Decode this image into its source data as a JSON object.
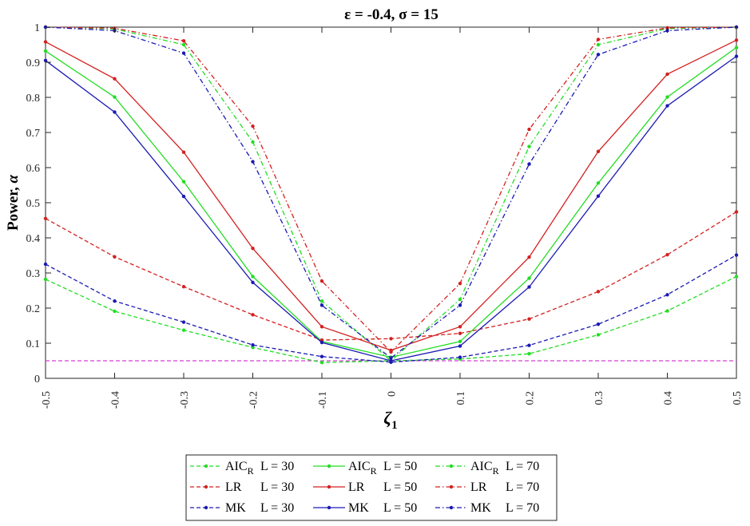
{
  "chart_data": {
    "type": "line",
    "title": "ε = -0.4, σ = 15",
    "xlabel": "ζ1",
    "ylabel": "Power, α",
    "x": [
      -0.5,
      -0.4,
      -0.3,
      -0.2,
      -0.1,
      0,
      0.1,
      0.2,
      0.3,
      0.4,
      0.5
    ],
    "x_tick_labels": [
      "-0.5",
      "-0.4",
      "-0.3",
      "-0.2",
      "-0.1",
      "0",
      "0.1",
      "0.2",
      "0.3",
      "0.4",
      "0.5"
    ],
    "y_ticks": [
      0,
      0.1,
      0.2,
      0.3,
      0.4,
      0.5,
      0.6,
      0.7,
      0.8,
      0.9,
      1
    ],
    "y_tick_labels": [
      "0",
      "0.1",
      "0.2",
      "0.3",
      "0.4",
      "0.5",
      "0.6",
      "0.7",
      "0.8",
      "0.9",
      "1"
    ],
    "xlim": [
      -0.5,
      0.5
    ],
    "ylim": [
      0,
      1
    ],
    "grid": false,
    "legend_position": "bottom",
    "reference_line": {
      "y": 0.05,
      "color": "#d63fd6"
    },
    "series": [
      {
        "name": "AIC_R L = 30",
        "method": "AIC",
        "sub": "R",
        "L": "L = 30",
        "color": "#22dd22",
        "dash": "dashed",
        "values": [
          0.282,
          0.191,
          0.137,
          0.088,
          0.045,
          0.05,
          0.055,
          0.07,
          0.124,
          0.192,
          0.29
        ]
      },
      {
        "name": "AIC_R L = 50",
        "method": "AIC",
        "sub": "R",
        "L": "L = 50",
        "color": "#22dd22",
        "dash": "solid",
        "values": [
          0.932,
          0.801,
          0.56,
          0.29,
          0.105,
          0.06,
          0.105,
          0.285,
          0.556,
          0.801,
          0.942
        ]
      },
      {
        "name": "AIC_R L = 70",
        "method": "AIC",
        "sub": "R",
        "L": "L = 70",
        "color": "#22dd22",
        "dash": "dashdot",
        "values": [
          1.0,
          0.995,
          0.95,
          0.673,
          0.22,
          0.05,
          0.225,
          0.66,
          0.95,
          0.996,
          1.0
        ]
      },
      {
        "name": "LR L = 30",
        "method": "LR",
        "sub": "",
        "L": "L = 30",
        "color": "#d42020",
        "dash": "dashed",
        "values": [
          0.455,
          0.346,
          0.261,
          0.181,
          0.109,
          0.113,
          0.128,
          0.169,
          0.247,
          0.352,
          0.474
        ]
      },
      {
        "name": "LR L = 50",
        "method": "LR",
        "sub": "",
        "L": "L = 50",
        "color": "#d42020",
        "dash": "solid",
        "values": [
          0.958,
          0.853,
          0.644,
          0.37,
          0.147,
          0.08,
          0.147,
          0.345,
          0.646,
          0.866,
          0.963
        ]
      },
      {
        "name": "LR L = 70",
        "method": "LR",
        "sub": "",
        "L": "L = 70",
        "color": "#d42020",
        "dash": "dashdot",
        "values": [
          1.0,
          0.997,
          0.961,
          0.718,
          0.277,
          0.075,
          0.27,
          0.709,
          0.965,
          0.998,
          1.0
        ]
      },
      {
        "name": "MK L = 30",
        "method": "MK",
        "sub": "",
        "L": "L = 30",
        "color": "#1a1ab4",
        "dash": "dashed",
        "values": [
          0.325,
          0.22,
          0.16,
          0.095,
          0.062,
          0.046,
          0.06,
          0.094,
          0.154,
          0.238,
          0.351
        ]
      },
      {
        "name": "MK L = 50",
        "method": "MK",
        "sub": "",
        "L": "L = 50",
        "color": "#1a1ab4",
        "dash": "solid",
        "values": [
          0.905,
          0.758,
          0.518,
          0.273,
          0.102,
          0.05,
          0.092,
          0.26,
          0.519,
          0.776,
          0.917
        ]
      },
      {
        "name": "MK L = 70",
        "method": "MK",
        "sub": "",
        "L": "L = 70",
        "color": "#1a1ab4",
        "dash": "dashdot",
        "values": [
          1.0,
          0.99,
          0.926,
          0.617,
          0.208,
          0.058,
          0.208,
          0.61,
          0.922,
          0.99,
          1.0
        ]
      }
    ]
  }
}
